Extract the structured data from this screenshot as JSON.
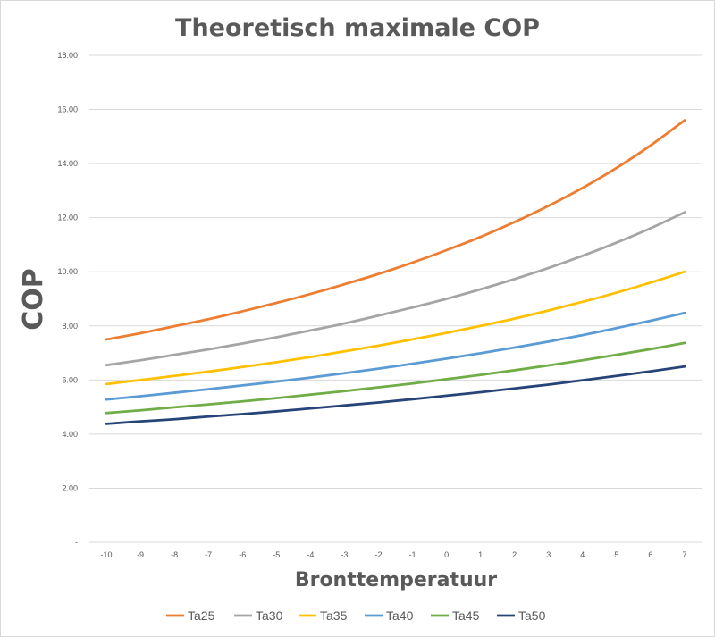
{
  "chart_data": {
    "type": "line",
    "title": "Theoretisch maximale COP",
    "xlabel": "Bronttemperatuur",
    "ylabel": "COP",
    "ylim": [
      0,
      18
    ],
    "yticks": [
      "-",
      "2.00",
      "4.00",
      "6.00",
      "8.00",
      "10.00",
      "12.00",
      "14.00",
      "16.00",
      "18.00"
    ],
    "x": [
      -10,
      -9,
      -8,
      -7,
      -6,
      -5,
      -4,
      -3,
      -2,
      -1,
      0,
      1,
      2,
      3,
      4,
      5,
      6,
      7
    ],
    "grid": true,
    "legend_position": "bottom",
    "series": [
      {
        "name": "Ta25",
        "color": "#ED7D31",
        "values": [
          7.5,
          7.73,
          7.99,
          8.25,
          8.54,
          8.85,
          9.18,
          9.54,
          9.92,
          10.34,
          10.8,
          11.29,
          11.84,
          12.44,
          13.1,
          13.84,
          14.67,
          15.6
        ]
      },
      {
        "name": "Ta30",
        "color": "#A5A5A5",
        "values": [
          6.55,
          6.73,
          6.93,
          7.13,
          7.35,
          7.58,
          7.83,
          8.09,
          8.38,
          8.68,
          9.0,
          9.35,
          9.73,
          10.14,
          10.59,
          11.08,
          11.61,
          12.2
        ]
      },
      {
        "name": "Ta35",
        "color": "#FFC000",
        "values": [
          5.85,
          6.0,
          6.15,
          6.31,
          6.48,
          6.66,
          6.85,
          7.06,
          7.27,
          7.5,
          7.74,
          8.0,
          8.27,
          8.57,
          8.89,
          9.23,
          9.6,
          10.0
        ]
      },
      {
        "name": "Ta40",
        "color": "#5B9BD5",
        "values": [
          5.28,
          5.4,
          5.53,
          5.66,
          5.8,
          5.94,
          6.09,
          6.25,
          6.42,
          6.6,
          6.79,
          6.99,
          7.2,
          7.42,
          7.66,
          7.92,
          8.19,
          8.48
        ]
      },
      {
        "name": "Ta45",
        "color": "#70AD47",
        "values": [
          4.78,
          4.88,
          4.99,
          5.1,
          5.21,
          5.33,
          5.46,
          5.59,
          5.73,
          5.87,
          6.03,
          6.19,
          6.36,
          6.54,
          6.73,
          6.93,
          7.14,
          7.37
        ]
      },
      {
        "name": "Ta50",
        "color": "#264478",
        "values": [
          4.38,
          4.47,
          4.55,
          4.65,
          4.74,
          4.84,
          4.95,
          5.06,
          5.17,
          5.29,
          5.42,
          5.55,
          5.69,
          5.83,
          5.99,
          6.15,
          6.32,
          6.5
        ]
      }
    ]
  }
}
